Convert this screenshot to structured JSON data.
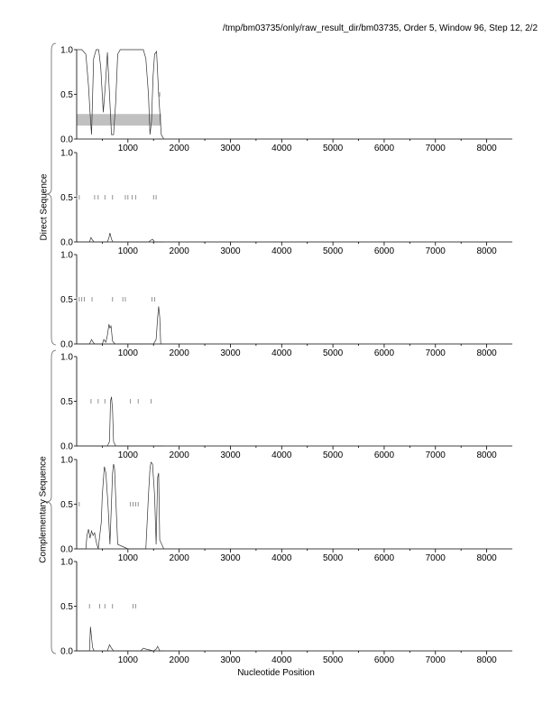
{
  "header": "/tmp/bm03735/only/raw_result_dir/bm03735, Order 5, Window 96, Step 12, 2/2",
  "group_labels": {
    "direct": "Direct Sequence",
    "complementary": "Complementary Sequence"
  },
  "xlabel": "Nucleotide Position",
  "chart_data": {
    "type": "line",
    "xlabel": "Nucleotide Position",
    "xlim": [
      0,
      8500
    ],
    "ylim": [
      0,
      1
    ],
    "xticks": [
      1000,
      2000,
      3000,
      4000,
      5000,
      6000,
      7000,
      8000
    ],
    "yticks": [
      0.0,
      0.5,
      1.0
    ],
    "ytick_labels": [
      "0.0",
      "0.5",
      "1.0"
    ],
    "shaded_region": {
      "panel": 1,
      "x": [
        0,
        1650
      ],
      "y": [
        0.15,
        0.28
      ],
      "color": "#c0c0c0"
    },
    "panels": [
      {
        "index": 1,
        "strand": "direct",
        "series": {
          "x": [
            0,
            100,
            180,
            230,
            260,
            290,
            330,
            380,
            430,
            470,
            520,
            560,
            600,
            640,
            680,
            720,
            760,
            800,
            850,
            900,
            1000,
            1100,
            1200,
            1300,
            1350,
            1400,
            1430,
            1460,
            1490,
            1520,
            1560,
            1600,
            1650,
            1700
          ],
          "y": [
            1.0,
            1.0,
            0.95,
            0.6,
            0.3,
            0.05,
            0.9,
            1.0,
            1.0,
            0.8,
            0.3,
            0.6,
            0.97,
            0.5,
            0.05,
            0.05,
            0.4,
            0.95,
            1.0,
            1.0,
            1.0,
            1.0,
            1.0,
            1.0,
            0.9,
            0.5,
            0.05,
            0.2,
            0.7,
            0.95,
            0.98,
            0.5,
            0.05,
            0.0
          ]
        },
        "markers": [
          1620
        ]
      },
      {
        "index": 2,
        "strand": "direct",
        "series": {
          "x": [
            0,
            250,
            280,
            310,
            340,
            500,
            600,
            630,
            650,
            680,
            710,
            800,
            1400,
            1450,
            1480,
            1520,
            1700
          ],
          "y": [
            0.0,
            0.0,
            0.05,
            0.02,
            0.0,
            0.0,
            0.0,
            0.05,
            0.1,
            0.03,
            0.0,
            0.0,
            0.0,
            0.02,
            0.03,
            0.0,
            0.0
          ]
        },
        "markers": [
          0,
          50,
          350,
          420,
          550,
          700,
          950,
          1000,
          1080,
          1150,
          1500,
          1550
        ]
      },
      {
        "index": 3,
        "strand": "direct",
        "series": {
          "x": [
            0,
            250,
            290,
            320,
            350,
            500,
            530,
            570,
            600,
            630,
            650,
            670,
            700,
            750,
            1500,
            1550,
            1580,
            1600,
            1620,
            1640,
            1700
          ],
          "y": [
            0.0,
            0.0,
            0.05,
            0.02,
            0.0,
            0.0,
            0.05,
            0.02,
            0.1,
            0.22,
            0.18,
            0.2,
            0.03,
            0.0,
            0.0,
            0.05,
            0.3,
            0.42,
            0.3,
            0.0,
            0.0
          ]
        },
        "markers": [
          0,
          50,
          100,
          150,
          300,
          700,
          900,
          950,
          1470,
          1520
        ]
      },
      {
        "index": 4,
        "strand": "complementary",
        "series": {
          "x": [
            0,
            600,
            640,
            660,
            680,
            700,
            720,
            760,
            1700
          ],
          "y": [
            0.0,
            0.0,
            0.05,
            0.5,
            0.55,
            0.4,
            0.05,
            0.0,
            0.0
          ]
        },
        "markers": [
          280,
          420,
          550,
          1050,
          1200,
          1450
        ]
      },
      {
        "index": 5,
        "strand": "complementary",
        "series": {
          "x": [
            0,
            180,
            200,
            230,
            260,
            290,
            320,
            350,
            380,
            420,
            480,
            500,
            540,
            570,
            610,
            650,
            700,
            720,
            740,
            760,
            800,
            1000,
            1350,
            1400,
            1430,
            1450,
            1480,
            1520,
            1550,
            1580,
            1600,
            1620,
            1700
          ],
          "y": [
            0.0,
            0.0,
            0.15,
            0.22,
            0.12,
            0.2,
            0.15,
            0.18,
            0.08,
            0.0,
            0.3,
            0.6,
            0.92,
            0.85,
            0.5,
            0.05,
            0.85,
            0.95,
            0.9,
            0.6,
            0.05,
            0.0,
            0.0,
            0.6,
            0.9,
            0.97,
            0.95,
            0.6,
            0.05,
            0.8,
            0.85,
            0.1,
            0.0
          ]
        },
        "markers": [
          50,
          1050,
          1100,
          1150,
          1200
        ]
      },
      {
        "index": 6,
        "strand": "complementary",
        "series": {
          "x": [
            0,
            250,
            270,
            290,
            310,
            340,
            600,
            640,
            680,
            720,
            1250,
            1300,
            1350,
            1500,
            1550,
            1580,
            1620,
            1700
          ],
          "y": [
            0.0,
            0.0,
            0.27,
            0.15,
            0.04,
            0.0,
            0.0,
            0.07,
            0.03,
            0.0,
            0.0,
            0.03,
            0.02,
            0.0,
            0.02,
            0.05,
            0.0,
            0.0
          ]
        },
        "markers": [
          250,
          450,
          550,
          700,
          1100,
          1150
        ]
      }
    ]
  }
}
